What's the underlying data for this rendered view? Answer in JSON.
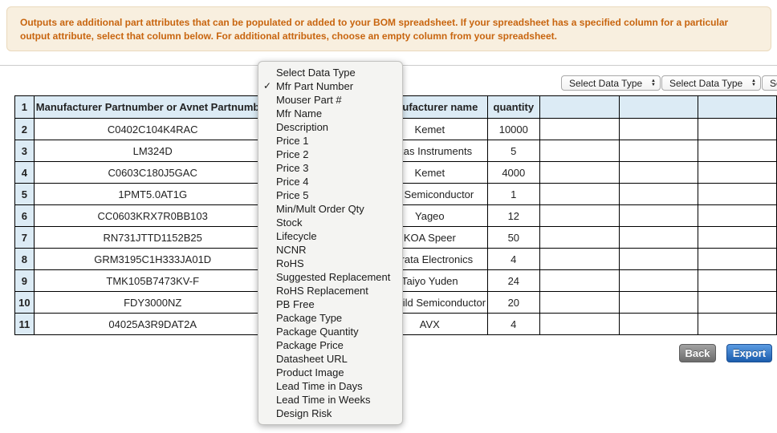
{
  "banner": {
    "text": "Outputs are additional part attributes that can be populated or added to your BOM spreadsheet. If your spreadsheet has a specified column for a particular output attribute, select that column below. For additional attributes, choose an empty column from your spreadsheet."
  },
  "selects": {
    "placeholder": "Select Data Type",
    "count": 3
  },
  "menu": {
    "items": [
      {
        "label": "Select Data Type",
        "checked": false
      },
      {
        "label": "Mfr Part Number",
        "checked": true
      },
      {
        "label": "Mouser Part #",
        "checked": false
      },
      {
        "label": "Mfr Name",
        "checked": false
      },
      {
        "label": "Description",
        "checked": false
      },
      {
        "label": "Price 1",
        "checked": false
      },
      {
        "label": "Price 2",
        "checked": false
      },
      {
        "label": "Price 3",
        "checked": false
      },
      {
        "label": "Price 4",
        "checked": false
      },
      {
        "label": "Price 5",
        "checked": false
      },
      {
        "label": "Min/Mult Order Qty",
        "checked": false
      },
      {
        "label": "Stock",
        "checked": false
      },
      {
        "label": "Lifecycle",
        "checked": false
      },
      {
        "label": "NCNR",
        "checked": false
      },
      {
        "label": "RoHS",
        "checked": false
      },
      {
        "label": "Suggested Replacement",
        "checked": false
      },
      {
        "label": "RoHS Replacement",
        "checked": false
      },
      {
        "label": "PB Free",
        "checked": false
      },
      {
        "label": "Package Type",
        "checked": false
      },
      {
        "label": "Package Quantity",
        "checked": false
      },
      {
        "label": "Package Price",
        "checked": false
      },
      {
        "label": "Datasheet URL",
        "checked": false
      },
      {
        "label": "Product Image",
        "checked": false
      },
      {
        "label": "Lead Time in Days",
        "checked": false
      },
      {
        "label": "Lead Time in Weeks",
        "checked": false
      },
      {
        "label": "Design Risk",
        "checked": false
      }
    ],
    "check_glyph": "✓"
  },
  "table": {
    "header": {
      "row_num": "1",
      "part_col": "Manufacturer Partnumber or Avnet Partnumber",
      "hidden_col": "",
      "mfr_col": "Manufacturer name",
      "qty_col": "quantity",
      "out1": "",
      "out2": "",
      "out3": ""
    },
    "rows": [
      {
        "num": "2",
        "part": "C0402C104K4RAC",
        "hidden": "",
        "mfr": "Kemet",
        "qty": "10000",
        "out1": "",
        "out2": "",
        "out3": ""
      },
      {
        "num": "3",
        "part": "LM324D",
        "hidden": "",
        "mfr": "Texas Instruments",
        "qty": "5",
        "out1": "",
        "out2": "",
        "out3": ""
      },
      {
        "num": "4",
        "part": "C0603C180J5GAC",
        "hidden": "",
        "mfr": "Kemet",
        "qty": "4000",
        "out1": "",
        "out2": "",
        "out3": ""
      },
      {
        "num": "5",
        "part": "1PMT5.0AT1G",
        "hidden": "",
        "mfr": "ON Semiconductor",
        "qty": "1",
        "out1": "",
        "out2": "",
        "out3": ""
      },
      {
        "num": "6",
        "part": "CC0603KRX7R0BB103",
        "hidden": "",
        "mfr": "Yageo",
        "qty": "12",
        "out1": "",
        "out2": "",
        "out3": ""
      },
      {
        "num": "7",
        "part": "RN731JTTD1152B25",
        "hidden": "",
        "mfr": "KOA Speer",
        "qty": "50",
        "out1": "",
        "out2": "",
        "out3": ""
      },
      {
        "num": "8",
        "part": "GRM3195C1H333JA01D",
        "hidden": "",
        "mfr": "Murata Electronics",
        "qty": "4",
        "out1": "",
        "out2": "",
        "out3": ""
      },
      {
        "num": "9",
        "part": "TMK105B7473KV-F",
        "hidden": "",
        "mfr": "Taiyo Yuden",
        "qty": "24",
        "out1": "",
        "out2": "",
        "out3": ""
      },
      {
        "num": "10",
        "part": "FDY3000NZ",
        "hidden": "",
        "mfr": "Fairchild Semiconductor",
        "qty": "20",
        "out1": "",
        "out2": "",
        "out3": ""
      },
      {
        "num": "11",
        "part": "04025A3R9DAT2A",
        "hidden": "",
        "mfr": "AVX",
        "qty": "4",
        "out1": "",
        "out2": "",
        "out3": ""
      }
    ]
  },
  "buttons": {
    "back": "Back",
    "export": "Export"
  },
  "colors": {
    "banner_bg": "#f8efdf",
    "banner_text": "#c8650f",
    "table_header_bg": "#dcebf5",
    "menu_bg": "#f4f4f2",
    "back_button": "#6c6c6c",
    "export_button": "#1b5dad"
  }
}
